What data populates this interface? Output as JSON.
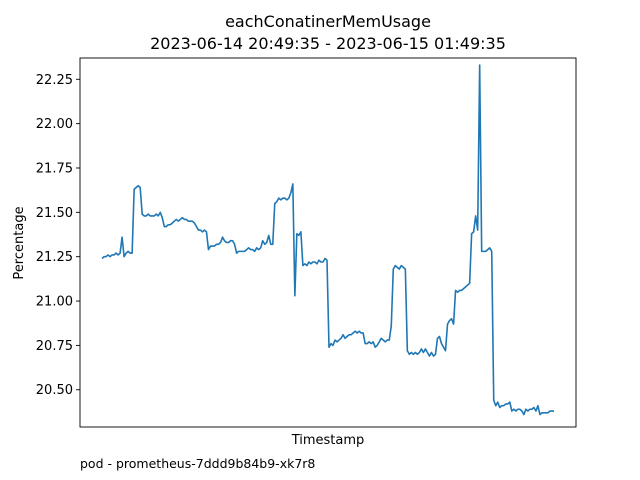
{
  "chart_data": {
    "type": "line",
    "title": "eachConatinerMemUsage",
    "subtitle": "2023-06-14 20:49:35 - 2023-06-15 01:49:35",
    "xlabel": "Timestamp",
    "ylabel": "Percentage",
    "ylim": [
      20.29,
      22.37
    ],
    "yticks": [
      "20.50",
      "20.75",
      "21.00",
      "21.25",
      "21.50",
      "21.75",
      "22.00",
      "22.25"
    ],
    "x_ticks_shown": false,
    "grid": false,
    "series": [
      {
        "color": "#1f77b4",
        "values": [
          21.24,
          21.25,
          21.25,
          21.26,
          21.25,
          21.26,
          21.26,
          21.27,
          21.26,
          21.27,
          21.36,
          21.25,
          21.27,
          21.28,
          21.27,
          21.27,
          21.63,
          21.64,
          21.65,
          21.64,
          21.49,
          21.48,
          21.48,
          21.49,
          21.48,
          21.48,
          21.48,
          21.49,
          21.48,
          21.5,
          21.47,
          21.42,
          21.42,
          21.43,
          21.43,
          21.44,
          21.45,
          21.46,
          21.45,
          21.46,
          21.47,
          21.46,
          21.46,
          21.45,
          21.45,
          21.45,
          21.44,
          21.42,
          21.4,
          21.4,
          21.39,
          21.4,
          21.39,
          21.29,
          21.31,
          21.31,
          21.31,
          21.32,
          21.32,
          21.33,
          21.36,
          21.34,
          21.33,
          21.33,
          21.34,
          21.34,
          21.32,
          21.27,
          21.28,
          21.28,
          21.28,
          21.28,
          21.29,
          21.3,
          21.29,
          21.29,
          21.28,
          21.3,
          21.29,
          21.3,
          21.34,
          21.32,
          21.33,
          21.37,
          21.32,
          21.32,
          21.55,
          21.56,
          21.58,
          21.57,
          21.58,
          21.58,
          21.57,
          21.58,
          21.61,
          21.66,
          21.03,
          21.38,
          21.37,
          21.39,
          21.2,
          21.21,
          21.2,
          21.22,
          21.21,
          21.22,
          21.22,
          21.21,
          21.23,
          21.22,
          21.22,
          21.24,
          21.23,
          20.74,
          20.76,
          20.75,
          20.78,
          20.77,
          20.78,
          20.79,
          20.81,
          20.79,
          20.8,
          20.81,
          20.81,
          20.82,
          20.83,
          20.82,
          20.83,
          20.82,
          20.82,
          20.76,
          20.76,
          20.77,
          20.76,
          20.77,
          20.74,
          20.75,
          20.77,
          20.79,
          20.78,
          20.77,
          20.78,
          20.78,
          20.86,
          21.18,
          21.2,
          21.19,
          21.18,
          21.2,
          21.19,
          21.18,
          20.72,
          20.7,
          20.71,
          20.7,
          20.71,
          20.7,
          20.71,
          20.73,
          20.71,
          20.73,
          20.71,
          20.69,
          20.71,
          20.69,
          20.7,
          20.79,
          20.8,
          20.76,
          20.74,
          20.72,
          20.87,
          20.89,
          20.9,
          20.87,
          21.06,
          21.05,
          21.06,
          21.06,
          21.07,
          21.08,
          21.09,
          21.1,
          21.38,
          21.39,
          21.48,
          21.4,
          22.33,
          21.28,
          21.28,
          21.28,
          21.29,
          21.3,
          21.28,
          20.44,
          20.41,
          20.43,
          20.4,
          20.41,
          20.41,
          20.42,
          20.42,
          20.43,
          20.38,
          20.39,
          20.38,
          20.39,
          20.39,
          20.38,
          20.36,
          20.39,
          20.38,
          20.39,
          20.39,
          20.4,
          20.38,
          20.41,
          20.36,
          20.37,
          20.37,
          20.37,
          20.37,
          20.38,
          20.38,
          20.38
        ]
      }
    ]
  },
  "footer": {
    "text": "pod - prometheus-7ddd9b84b9-xk7r8"
  }
}
